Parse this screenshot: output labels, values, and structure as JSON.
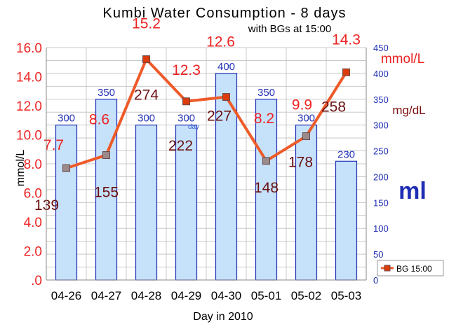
{
  "chart_data": {
    "type": "bar+line",
    "title": "Kumbi Water Consumption  - 8 days",
    "subtitle": "with BGs at 15:00",
    "xlabel": "Day in 2010",
    "ylabel_left": "mmol/L",
    "ylabel_right_mmol": "mmol/L",
    "ylabel_right_mgdl": "mg/dL",
    "bar_unit_label": "ml",
    "small_label": "day",
    "categories": [
      "04-26",
      "04-27",
      "04-28",
      "04-29",
      "04-30",
      "05-01",
      "05-02",
      "05-03"
    ],
    "bars": {
      "values": [
        300,
        350,
        300,
        300,
        400,
        350,
        300,
        230
      ],
      "color": "#c6e2fb",
      "stroke": "#1f2fb4",
      "label_color": "#1f2fb4"
    },
    "bg_series": {
      "name": "BG 15:00",
      "mmol": [
        7.7,
        8.6,
        15.2,
        12.3,
        12.6,
        8.2,
        9.9,
        14.3
      ],
      "mmol_labels": [
        "7.7",
        "8.6",
        "15.2",
        "12.3",
        "12.6",
        "8.2",
        "9.9",
        "14.3"
      ],
      "mgdl": [
        139,
        155,
        274,
        222,
        227,
        148,
        178,
        258
      ],
      "mgdl_labels": [
        "139",
        "155",
        "274",
        "222",
        "227",
        "148",
        "178",
        "258"
      ],
      "line_color": "#ee5a28",
      "mmol_label_color": "#ee2222",
      "mgdl_label_color": "#6b1010"
    },
    "left_axis": {
      "min": 0,
      "max": 16,
      "step": 2,
      "tick_labels": [
        ".0",
        "2.0",
        "4.0",
        "6.0",
        "8.0",
        "10.0",
        "12.0",
        "14.0",
        "16.0"
      ],
      "color": "#ee2222"
    },
    "right_axis": {
      "min": 0,
      "max": 450,
      "step": 50,
      "tick_labels": [
        "0",
        "50",
        "100",
        "150",
        "200",
        "250",
        "300",
        "350",
        "400",
        "450"
      ],
      "color": "#1f2fb4"
    },
    "grid": true,
    "legend": "bottom-right"
  }
}
